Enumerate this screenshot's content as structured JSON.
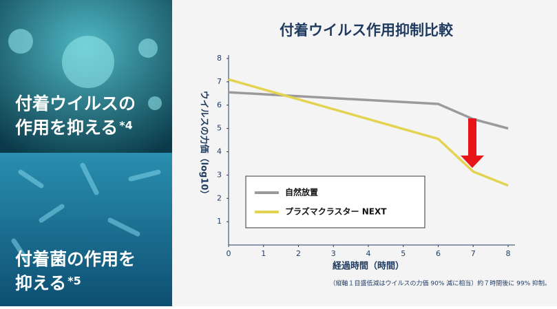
{
  "panels": [
    {
      "lines": [
        "付着ウイルスの",
        "作用を抑える"
      ],
      "note": "*4"
    },
    {
      "lines": [
        "付着菌の作用を",
        "抑える"
      ],
      "note": "*5"
    }
  ],
  "chart_data": {
    "type": "line",
    "title": "付着ウイルス作用抑制比較",
    "x_label": "経過時間（時間）",
    "y_label": "ウイルスの力価（log10）",
    "footnote": "（縦軸１目盛低減はウイルスの力価 90% 減に相当）約７時間後に 99% 抑制。",
    "x": [
      0,
      6,
      7,
      8
    ],
    "series": [
      {
        "name": "自然放置",
        "color": "#9a9a9a",
        "values": [
          6.55,
          6.05,
          5.4,
          5.0
        ]
      },
      {
        "name": "プラズマクラスター NEXT",
        "color": "#e3d350",
        "values": [
          7.1,
          4.55,
          3.15,
          2.55
        ]
      }
    ],
    "xlim": [
      0,
      8
    ],
    "xticks": [
      0,
      1,
      2,
      3,
      4,
      5,
      6,
      7,
      8
    ],
    "ylim": [
      0,
      8
    ],
    "yticks": [
      1,
      2,
      3,
      4,
      5,
      6,
      7,
      8
    ],
    "grid": false
  }
}
